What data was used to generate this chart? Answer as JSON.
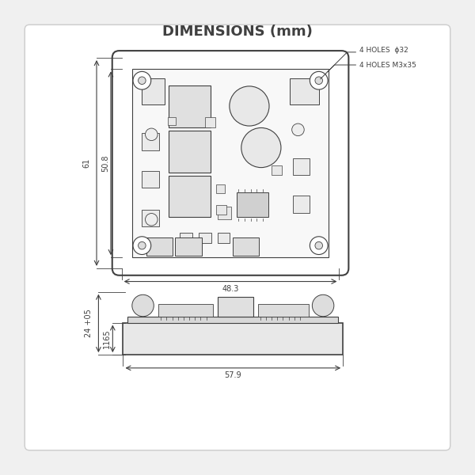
{
  "title": "DIMENSIONS (mm)",
  "title_fontsize": 13,
  "bg_color": "#f0f0f0",
  "line_color": "#404040",
  "dim_color": "#404040",
  "text_color": "#404040",
  "font_size": 7,
  "top_view": {
    "dim_width": "48.3",
    "dim_height_outer": "61",
    "dim_height_inner": "50.8",
    "holes_label1": "4 HOLES  ϕ32",
    "holes_label2": "4 HOLES M3x35"
  },
  "side_view": {
    "dim_width": "57.9",
    "dim_height_outer": "24 +05",
    "dim_height_inner": "1165"
  }
}
